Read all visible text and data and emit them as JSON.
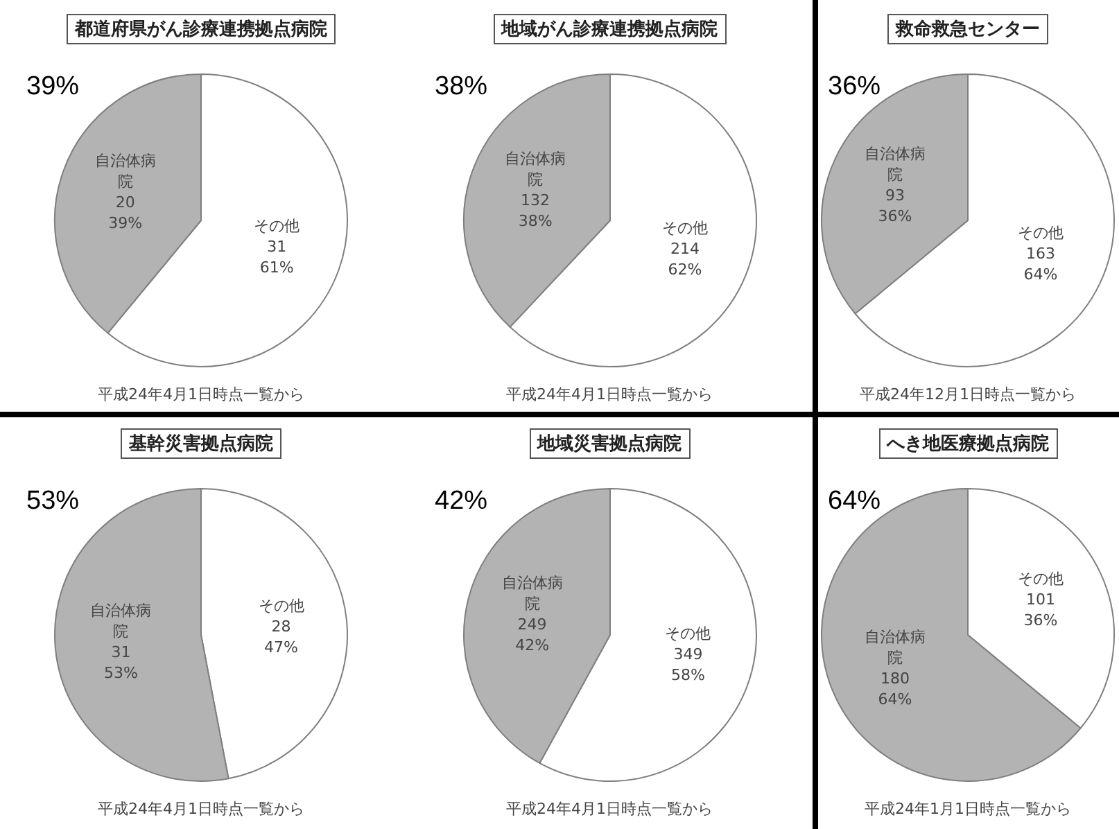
{
  "chart_data": [
    {
      "type": "pie",
      "title": "都道府県がん診療連携拠点病院",
      "categories": [
        "その他",
        "自治体病院"
      ],
      "values": [
        61,
        39
      ],
      "colors": [
        "#ffffff",
        "#b3b3b3"
      ],
      "value_labels": [
        "31\n61%",
        "20\n39%"
      ],
      "annotations": [
        "39%",
        "平成24年4月1日時点一覧から"
      ]
    },
    {
      "type": "pie",
      "title": "地域がん診療連携拠点病院",
      "categories": [
        "その他",
        "自治体病院"
      ],
      "values": [
        62,
        38
      ],
      "colors": [
        "#ffffff",
        "#b3b3b3"
      ],
      "value_labels": [
        "214\n62%",
        "132\n38%"
      ],
      "annotations": [
        "38%",
        "平成24年4月1日時点一覧から"
      ]
    },
    {
      "type": "pie",
      "title": "救命救急センター",
      "categories": [
        "その他",
        "自治体病院"
      ],
      "values": [
        64,
        36
      ],
      "colors": [
        "#ffffff",
        "#b3b3b3"
      ],
      "value_labels": [
        "163\n64%",
        "93\n36%"
      ],
      "annotations": [
        "36%",
        "平成24年12月1日時点一覧から"
      ]
    },
    {
      "type": "pie",
      "title": "基幹災害拠点病院",
      "categories": [
        "その他",
        "自治体病院"
      ],
      "values": [
        47,
        53
      ],
      "colors": [
        "#ffffff",
        "#b3b3b3"
      ],
      "value_labels": [
        "28\n47%",
        "31\n53%"
      ],
      "annotations": [
        "53%",
        "平成24年4月1日時点一覧から"
      ]
    },
    {
      "type": "pie",
      "title": "地域災害拠点病院",
      "categories": [
        "その他",
        "自治体病院"
      ],
      "values": [
        58,
        42
      ],
      "colors": [
        "#ffffff",
        "#b3b3b3"
      ],
      "value_labels": [
        "349\n58%",
        "249\n42%"
      ],
      "annotations": [
        "42%",
        "平成24年4月1日時点一覧から"
      ]
    },
    {
      "type": "pie",
      "title": "へき地医療拠点病院",
      "categories": [
        "その他",
        "自治体病院"
      ],
      "values": [
        36,
        64
      ],
      "colors": [
        "#ffffff",
        "#b3b3b3"
      ],
      "value_labels": [
        "101\n36%",
        "180\n64%"
      ],
      "annotations": [
        "64%",
        "平成24年1月1日時点一覧から"
      ]
    }
  ]
}
